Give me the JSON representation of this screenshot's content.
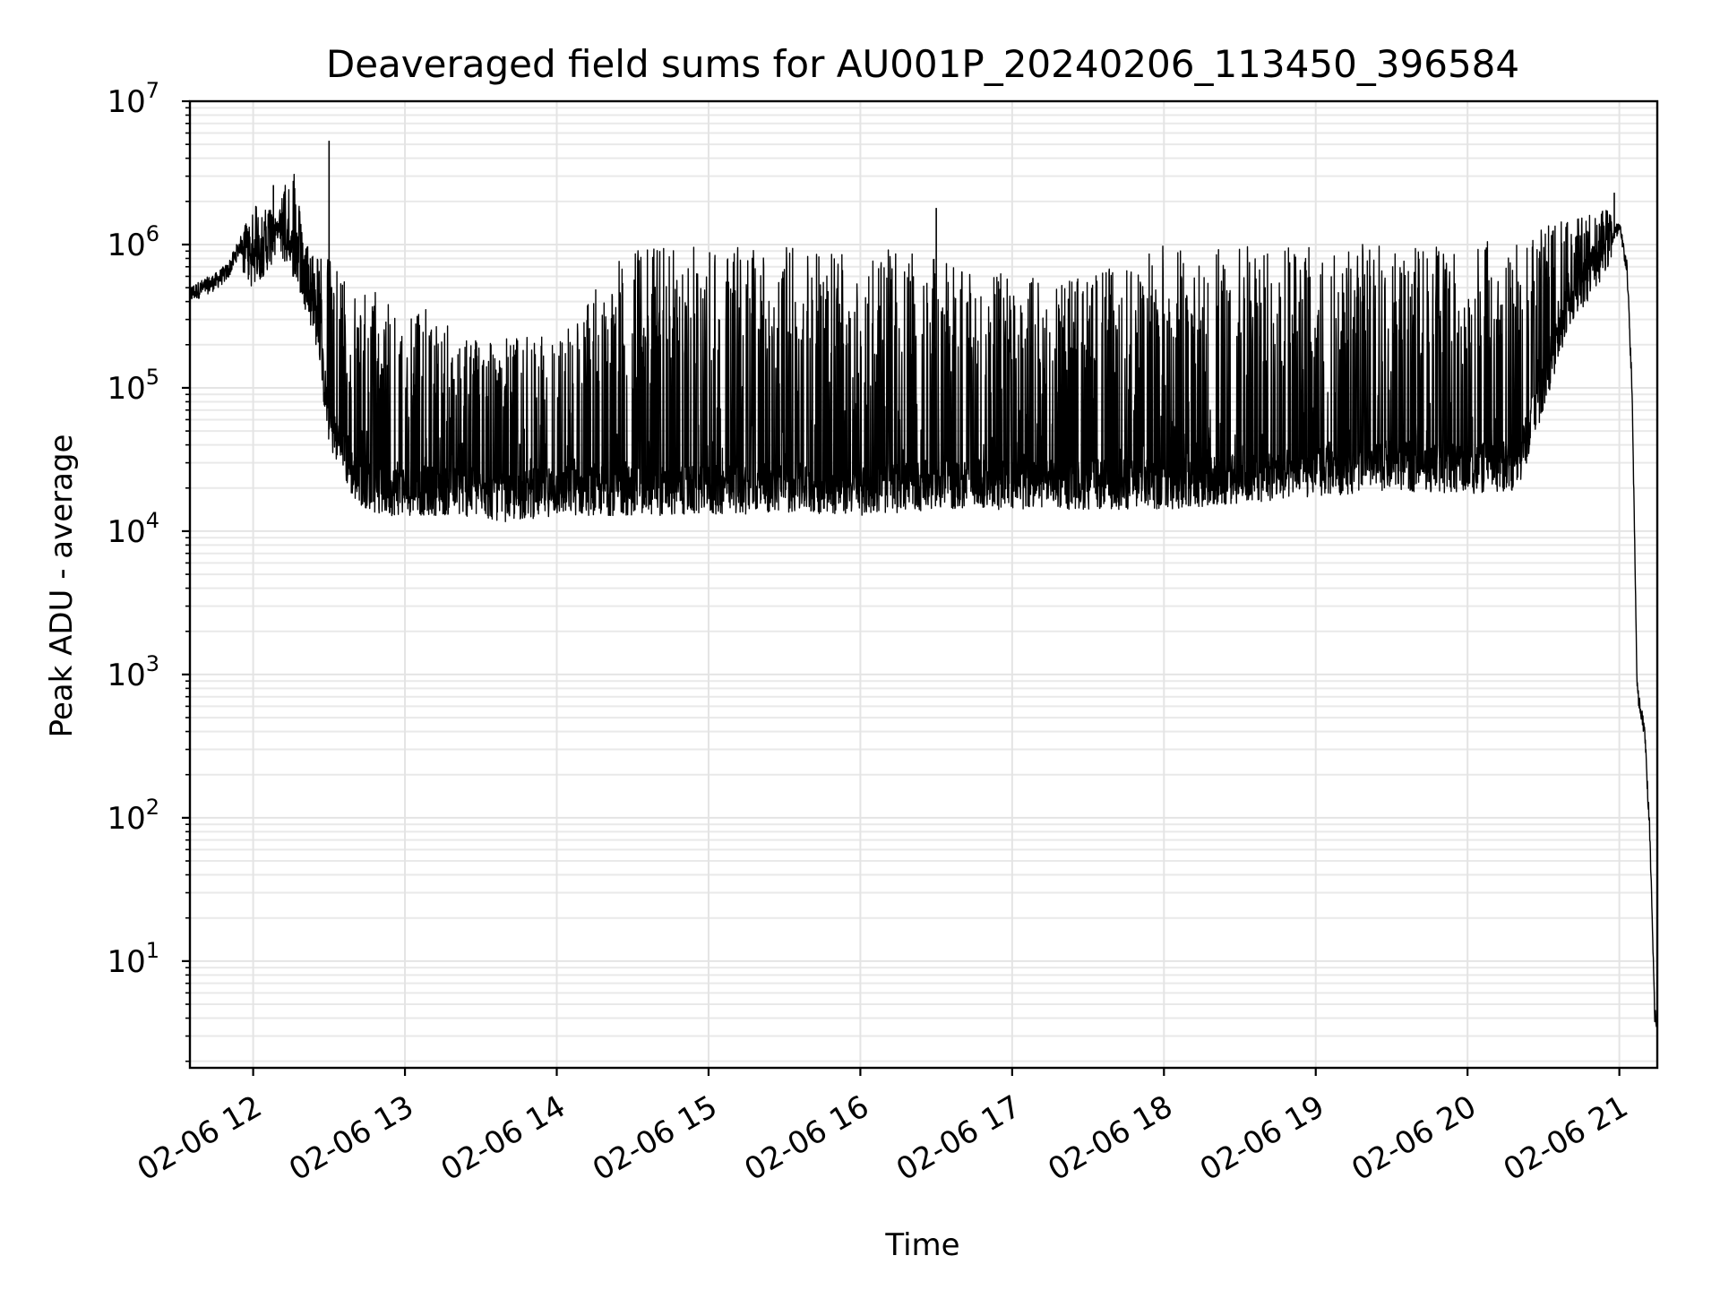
{
  "chart_data": {
    "type": "line",
    "title": "Deaveraged field sums for AU001P_20240206_113450_396584",
    "xlabel": "Time",
    "ylabel": "Peak ADU - average",
    "yscale": "log",
    "ylim": [
      1.8,
      10000000
    ],
    "xlim": [
      "2024-02-06 11:35",
      "2024-02-06 21:15"
    ],
    "grid": true,
    "x_ticks": [
      {
        "value": "2024-02-06 12:00",
        "label": "02-06 12"
      },
      {
        "value": "2024-02-06 13:00",
        "label": "02-06 13"
      },
      {
        "value": "2024-02-06 14:00",
        "label": "02-06 14"
      },
      {
        "value": "2024-02-06 15:00",
        "label": "02-06 15"
      },
      {
        "value": "2024-02-06 16:00",
        "label": "02-06 16"
      },
      {
        "value": "2024-02-06 17:00",
        "label": "02-06 17"
      },
      {
        "value": "2024-02-06 18:00",
        "label": "02-06 18"
      },
      {
        "value": "2024-02-06 19:00",
        "label": "02-06 19"
      },
      {
        "value": "2024-02-06 20:00",
        "label": "02-06 20"
      },
      {
        "value": "2024-02-06 21:00",
        "label": "02-06 21"
      }
    ],
    "y_ticks": [
      {
        "value": 10,
        "base": "10",
        "exp": "1"
      },
      {
        "value": 100,
        "base": "10",
        "exp": "2"
      },
      {
        "value": 1000,
        "base": "10",
        "exp": "3"
      },
      {
        "value": 10000,
        "base": "10",
        "exp": "4"
      },
      {
        "value": 100000,
        "base": "10",
        "exp": "5"
      },
      {
        "value": 1000000,
        "base": "10",
        "exp": "6"
      },
      {
        "value": 10000000,
        "base": "10",
        "exp": "7"
      }
    ],
    "series": [
      {
        "color": "#000000",
        "x": [
          "2024-02-06 11:35",
          "2024-02-06 11:45",
          "2024-02-06 11:50",
          "2024-02-06 11:55",
          "2024-02-06 12:00",
          "2024-02-06 12:10",
          "2024-02-06 12:15",
          "2024-02-06 12:20",
          "2024-02-06 12:25",
          "2024-02-06 12:30",
          "2024-02-06 12:40",
          "2024-02-06 12:50",
          "2024-02-06 13:00",
          "2024-02-06 13:20",
          "2024-02-06 13:40",
          "2024-02-06 14:00",
          "2024-02-06 14:30",
          "2024-02-06 15:00",
          "2024-02-06 15:30",
          "2024-02-06 16:00",
          "2024-02-06 16:30",
          "2024-02-06 17:00",
          "2024-02-06 17:30",
          "2024-02-06 18:00",
          "2024-02-06 18:30",
          "2024-02-06 19:00",
          "2024-02-06 19:30",
          "2024-02-06 20:00",
          "2024-02-06 20:20",
          "2024-02-06 20:40",
          "2024-02-06 20:55",
          "2024-02-06 21:00",
          "2024-02-06 21:03",
          "2024-02-06 21:05",
          "2024-02-06 21:06",
          "2024-02-06 21:07",
          "2024-02-06 21:08",
          "2024-02-06 21:10",
          "2024-02-06 21:12",
          "2024-02-06 21:13",
          "2024-02-06 21:14",
          "2024-02-06 21:15"
        ],
        "base": [
          450000,
          550000,
          650000,
          1000000,
          750000,
          1300000,
          1000000,
          600000,
          300000,
          60000,
          25000,
          20000,
          20000,
          20000,
          18000,
          20000,
          20000,
          20000,
          21000,
          20000,
          22000,
          22000,
          22000,
          22000,
          24000,
          27000,
          30000,
          28000,
          30000,
          400000,
          1000000,
          1300000,
          700000,
          100000,
          10000,
          800,
          600,
          400,
          80,
          20,
          4,
          3.8
        ],
        "peak": [
          500000,
          600000,
          800000,
          1200000,
          2000000,
          1700000,
          5000000,
          1100000,
          900000,
          800000,
          500000,
          500000,
          450000,
          250000,
          230000,
          230000,
          1000000,
          1000000,
          1000000,
          1000000,
          800000,
          600000,
          600000,
          1000000,
          1000000,
          1000000,
          1000000,
          1000000,
          1200000,
          1500000,
          1800000,
          1300000,
          700000,
          100000,
          10000,
          800,
          600,
          400,
          80,
          20,
          4,
          3.8
        ]
      }
    ],
    "spikes": [
      {
        "x": "2024-02-06 12:08",
        "y": 2600000
      },
      {
        "x": "2024-02-06 12:30",
        "y": 5300000
      },
      {
        "x": "2024-02-06 16:30",
        "y": 1800000
      },
      {
        "x": "2024-02-06 20:58",
        "y": 2300000
      }
    ]
  }
}
